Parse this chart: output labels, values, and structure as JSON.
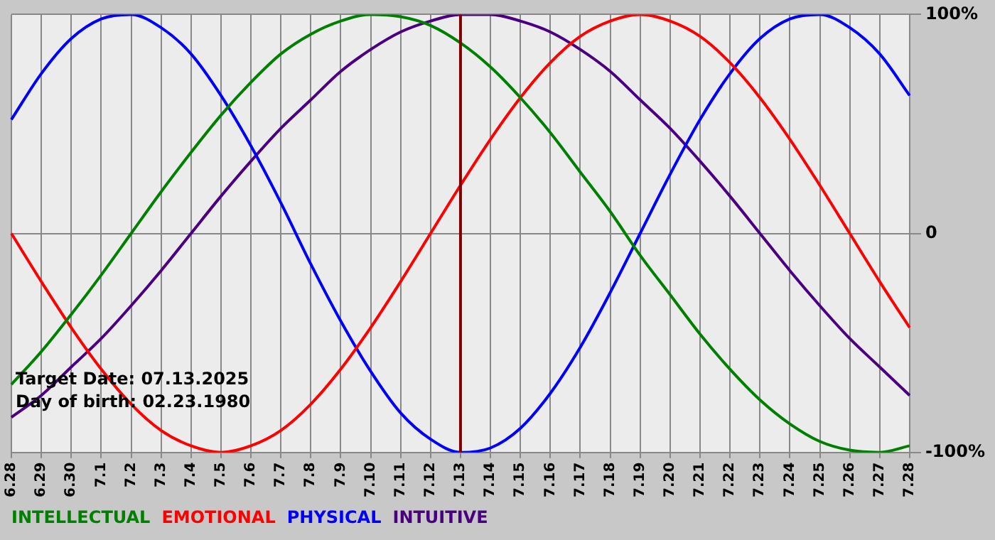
{
  "chart_data": {
    "type": "line",
    "categories": [
      "6.28",
      "6.29",
      "6.30",
      "7.1",
      "7.2",
      "7.3",
      "7.4",
      "7.5",
      "7.6",
      "7.7",
      "7.8",
      "7.9",
      "7.10",
      "7.11",
      "7.12",
      "7.13",
      "7.14",
      "7.15",
      "7.16",
      "7.17",
      "7.18",
      "7.19",
      "7.20",
      "7.21",
      "7.22",
      "7.23",
      "7.24",
      "7.25",
      "7.26",
      "7.27",
      "7.28"
    ],
    "series": [
      {
        "name": "INTELLECTUAL",
        "color": "#008000",
        "values": [
          -69,
          -54,
          -37,
          -19,
          0,
          19,
          37,
          54,
          69,
          82,
          91,
          97,
          100,
          99,
          95,
          87,
          76,
          62,
          46,
          28,
          10,
          -10,
          -28,
          -46,
          -62,
          -76,
          -87,
          -95,
          -99,
          -100,
          -97
        ]
      },
      {
        "name": "EMOTIONAL",
        "color": "#ff0000",
        "values": [
          0,
          -22,
          -43,
          -62,
          -78,
          -90,
          -97,
          -100,
          -97,
          -90,
          -78,
          -62,
          -43,
          -22,
          0,
          22,
          43,
          62,
          78,
          90,
          97,
          100,
          97,
          90,
          78,
          62,
          43,
          22,
          0,
          -22,
          -43
        ]
      },
      {
        "name": "PHYSICAL",
        "color": "#0000ff",
        "values": [
          52,
          73,
          89,
          98,
          100,
          94,
          82,
          63,
          40,
          14,
          -14,
          -40,
          -63,
          -82,
          -94,
          -100,
          -98,
          -89,
          -73,
          -52,
          -27,
          0,
          27,
          52,
          73,
          89,
          98,
          100,
          94,
          82,
          63
        ]
      },
      {
        "name": "INTUITIVE",
        "color": "#4b0082",
        "values": [
          -84,
          -74,
          -61,
          -48,
          -33,
          -17,
          0,
          17,
          33,
          48,
          61,
          74,
          84,
          92,
          97,
          100,
          100,
          97,
          92,
          84,
          74,
          61,
          48,
          33,
          17,
          0,
          -17,
          -33,
          -48,
          -61,
          -74
        ]
      }
    ],
    "ylim": [
      -100,
      100
    ],
    "yticks": [
      {
        "value": 100,
        "label": "100%"
      },
      0,
      {
        "value": -100,
        "label": "-100%"
      }
    ],
    "ref_lines": [
      {
        "axis": "x",
        "value": "7.13",
        "color": "#800000"
      }
    ],
    "annotations": [
      "Target Date: 07.13.2025",
      "Day of birth: 02.23.1980"
    ],
    "grid": true,
    "legend": "bottom",
    "marker": "none",
    "line_style": "solid"
  }
}
